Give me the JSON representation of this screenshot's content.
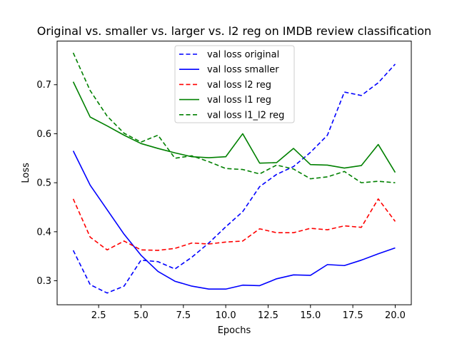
{
  "chart_data": {
    "type": "line",
    "title": "Original vs. smaller vs. larger vs. l2 reg on IMDB review classification",
    "xlabel": "Epochs",
    "ylabel": "Loss",
    "xlim": [
      0.05,
      20.95
    ],
    "ylim": [
      0.251,
      0.789
    ],
    "xticks": [
      2.5,
      5.0,
      7.5,
      10.0,
      12.5,
      15.0,
      17.5,
      20.0
    ],
    "xtick_labels": [
      "2.5",
      "5.0",
      "7.5",
      "10.0",
      "12.5",
      "15.0",
      "17.5",
      "20.0"
    ],
    "yticks": [
      0.3,
      0.4,
      0.5,
      0.6,
      0.7
    ],
    "ytick_labels": [
      "0.3",
      "0.4",
      "0.5",
      "0.6",
      "0.7"
    ],
    "grid": false,
    "legend_position": "top-center",
    "x": [
      1,
      2,
      3,
      4,
      5,
      6,
      7,
      8,
      9,
      10,
      11,
      12,
      13,
      14,
      15,
      16,
      17,
      18,
      19,
      20
    ],
    "series": [
      {
        "name": "val loss original",
        "color": "#0000ff",
        "dash": "dashed",
        "values": [
          0.362,
          0.292,
          0.275,
          0.289,
          0.342,
          0.339,
          0.324,
          0.348,
          0.377,
          0.41,
          0.441,
          0.492,
          0.517,
          0.533,
          0.562,
          0.597,
          0.685,
          0.678,
          0.704,
          0.742
        ]
      },
      {
        "name": "val loss smaller",
        "color": "#0000ff",
        "dash": "solid",
        "values": [
          0.565,
          0.495,
          0.445,
          0.395,
          0.352,
          0.319,
          0.299,
          0.289,
          0.283,
          0.283,
          0.291,
          0.29,
          0.304,
          0.312,
          0.311,
          0.333,
          0.331,
          0.342,
          0.355,
          0.367
        ]
      },
      {
        "name": "val loss l2 reg",
        "color": "#ff0000",
        "dash": "dashed",
        "values": [
          0.467,
          0.389,
          0.363,
          0.381,
          0.363,
          0.362,
          0.366,
          0.377,
          0.375,
          0.379,
          0.381,
          0.406,
          0.398,
          0.398,
          0.407,
          0.404,
          0.412,
          0.409,
          0.467,
          0.421
        ]
      },
      {
        "name": "val loss l1 reg",
        "color": "#008000",
        "dash": "solid",
        "values": [
          0.706,
          0.634,
          0.616,
          0.597,
          0.58,
          0.57,
          0.561,
          0.553,
          0.551,
          0.553,
          0.6,
          0.54,
          0.541,
          0.57,
          0.537,
          0.536,
          0.53,
          0.535,
          0.578,
          0.521
        ]
      },
      {
        "name": "val loss l1_l2 reg",
        "color": "#008000",
        "dash": "dashed",
        "values": [
          0.765,
          0.688,
          0.636,
          0.601,
          0.583,
          0.597,
          0.55,
          0.555,
          0.543,
          0.529,
          0.527,
          0.518,
          0.536,
          0.528,
          0.508,
          0.512,
          0.523,
          0.5,
          0.503,
          0.5
        ]
      }
    ]
  }
}
